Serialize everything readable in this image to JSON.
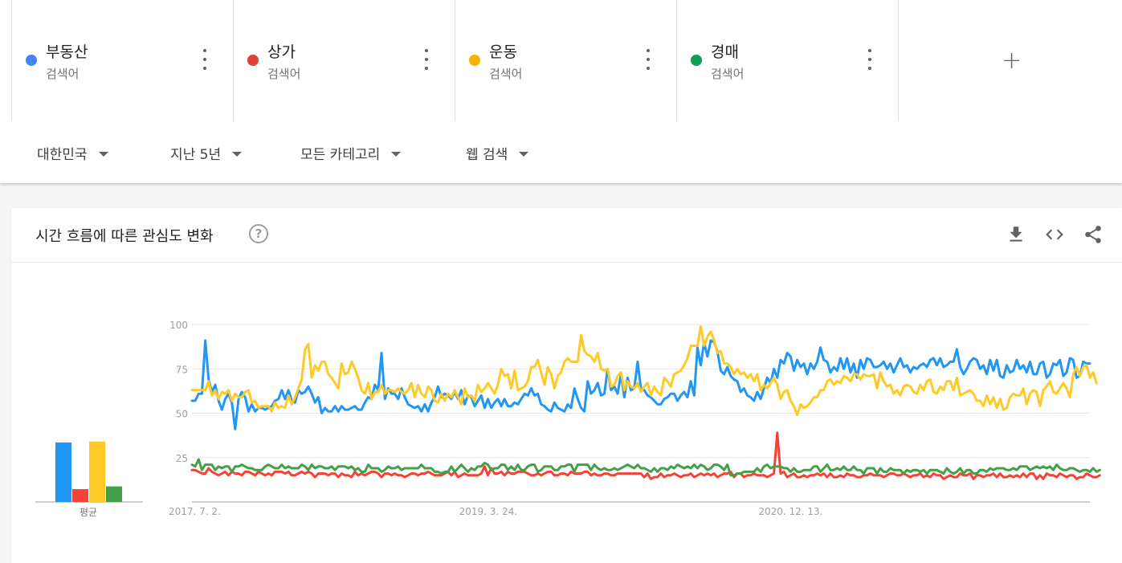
{
  "terms": [
    {
      "name": "부동산",
      "type": "검색어",
      "color": "#4285f4"
    },
    {
      "name": "상가",
      "type": "검색어",
      "color": "#db4437"
    },
    {
      "name": "운동",
      "type": "검색어",
      "color": "#f4b400"
    },
    {
      "name": "경매",
      "type": "검색어",
      "color": "#0f9d58"
    }
  ],
  "add_term_symbol": "+",
  "filters": {
    "region": "대한민국",
    "period": "지난 5년",
    "category": "모든 카테고리",
    "search_type": "웹 검색"
  },
  "card": {
    "title": "시간 흐름에 따른 관심도 변화",
    "help_symbol": "?"
  },
  "chart_data": [
    {
      "type": "bar",
      "xlabel": "평균",
      "categories": [
        "부동산",
        "상가",
        "운동",
        "경매"
      ],
      "values": [
        65,
        14,
        66,
        17
      ],
      "colors": [
        "#2196f3",
        "#f44336",
        "#ffca28",
        "#43a047"
      ]
    },
    {
      "type": "line",
      "ylim": [
        0,
        100
      ],
      "yticks": [
        25,
        50,
        75,
        100
      ],
      "xticks": [
        "2017. 7. 2.",
        "2019. 3. 24.",
        "2020. 12. 13."
      ],
      "x_start": "2017-07-02",
      "x_step": "1 week",
      "series": [
        {
          "name": "부동산",
          "color": "#2196f3",
          "values": [
            57,
            57,
            61,
            61,
            91,
            69,
            62,
            66,
            57,
            52,
            58,
            61,
            56,
            41,
            58,
            62,
            59,
            51,
            55,
            51,
            53,
            53,
            52,
            53,
            54,
            57,
            58,
            63,
            58,
            63,
            57,
            56,
            63,
            61,
            62,
            65,
            61,
            56,
            59,
            50,
            53,
            51,
            51,
            54,
            51,
            54,
            52,
            52,
            53,
            54,
            52,
            52,
            56,
            59,
            58,
            66,
            63,
            84,
            58,
            64,
            61,
            61,
            58,
            64,
            59,
            55,
            54,
            53,
            54,
            51,
            55,
            51,
            56,
            59,
            65,
            59,
            61,
            60,
            58,
            62,
            58,
            63,
            55,
            60,
            59,
            54,
            57,
            60,
            53,
            58,
            53,
            56,
            58,
            54,
            58,
            54,
            54,
            56,
            55,
            58,
            61,
            60,
            64,
            60,
            61,
            55,
            54,
            52,
            51,
            56,
            53,
            52,
            51,
            55,
            53,
            64,
            58,
            53,
            51,
            68,
            61,
            63,
            67,
            60,
            61,
            75,
            63,
            65,
            61,
            72,
            59,
            70,
            63,
            64,
            79,
            64,
            63,
            60,
            59,
            57,
            55,
            55,
            58,
            59,
            61,
            61,
            57,
            60,
            62,
            59,
            68,
            60,
            87,
            77,
            90,
            82,
            91,
            90,
            85,
            74,
            72,
            76,
            71,
            69,
            68,
            62,
            64,
            60,
            59,
            57,
            62,
            58,
            64,
            70,
            67,
            75,
            70,
            80,
            78,
            84,
            82,
            74,
            80,
            76,
            78,
            72,
            78,
            75,
            79,
            87,
            80,
            79,
            73,
            76,
            74,
            81,
            75,
            81,
            73,
            78,
            70,
            80,
            75,
            81,
            80,
            76,
            76,
            77,
            79,
            75,
            78,
            73,
            77,
            81,
            76,
            77,
            73,
            76,
            75,
            77,
            78,
            76,
            80,
            81,
            77,
            81,
            76,
            77,
            79,
            79,
            86,
            76,
            72,
            75,
            79,
            81,
            80,
            75,
            77,
            72,
            80,
            74,
            80,
            71,
            70,
            77,
            73,
            74,
            80,
            75,
            77,
            73,
            79,
            72,
            72,
            78,
            79,
            70,
            72,
            78,
            77,
            80,
            71,
            73,
            81,
            80,
            70,
            71,
            79,
            78,
            78
          ]
        },
        {
          "name": "상가",
          "color": "#f44336",
          "values": [
            18,
            18,
            17,
            16,
            16,
            19,
            17,
            16,
            15,
            16,
            17,
            15,
            17,
            16,
            16,
            15,
            17,
            17,
            16,
            15,
            17,
            16,
            15,
            16,
            15,
            17,
            17,
            17,
            16,
            17,
            15,
            15,
            16,
            17,
            16,
            17,
            16,
            14,
            16,
            16,
            16,
            15,
            16,
            16,
            14,
            16,
            15,
            15,
            14,
            17,
            15,
            16,
            15,
            16,
            17,
            17,
            16,
            14,
            16,
            16,
            15,
            16,
            15,
            15,
            14,
            15,
            16,
            16,
            15,
            16,
            16,
            17,
            16,
            15,
            15,
            15,
            16,
            17,
            15,
            17,
            14,
            15,
            16,
            15,
            15,
            15,
            15,
            16,
            20,
            15,
            19,
            16,
            16,
            17,
            15,
            17,
            16,
            16,
            17,
            17,
            17,
            16,
            15,
            15,
            16,
            15,
            16,
            17,
            17,
            15,
            15,
            16,
            16,
            15,
            17,
            16,
            16,
            16,
            17,
            17,
            15,
            16,
            15,
            15,
            16,
            16,
            15,
            15,
            16,
            16,
            16,
            16,
            16,
            16,
            16,
            16,
            14,
            16,
            13,
            14,
            14,
            16,
            14,
            15,
            15,
            16,
            15,
            14,
            15,
            15,
            16,
            14,
            15,
            16,
            15,
            16,
            15,
            16,
            14,
            15,
            16,
            16,
            17,
            14,
            16,
            16,
            14,
            15,
            15,
            16,
            15,
            15,
            15,
            14,
            15,
            16,
            39,
            16,
            17,
            14,
            15,
            16,
            14,
            14,
            15,
            14,
            15,
            15,
            16,
            15,
            16,
            14,
            16,
            14,
            14,
            15,
            14,
            16,
            15,
            15,
            14,
            14,
            15,
            15,
            16,
            15,
            15,
            15,
            14,
            15,
            16,
            16,
            15,
            15,
            16,
            15,
            14,
            15,
            15,
            16,
            14,
            15,
            14,
            16,
            15,
            15,
            13,
            14,
            15,
            14,
            14,
            16,
            15,
            15,
            16,
            13,
            15,
            15,
            14,
            15,
            15,
            16,
            14,
            16,
            14,
            14,
            15,
            14,
            15,
            14,
            16,
            14,
            16,
            16,
            13,
            15,
            13,
            16,
            15,
            15,
            14,
            16,
            15,
            14,
            15,
            15,
            13,
            14,
            14,
            16,
            15,
            14,
            14,
            15
          ]
        },
        {
          "name": "운동",
          "color": "#ffca28",
          "values": [
            63,
            63,
            63,
            63,
            63,
            68,
            60,
            63,
            58,
            62,
            61,
            63,
            57,
            61,
            59,
            59,
            62,
            63,
            56,
            57,
            53,
            54,
            54,
            54,
            51,
            56,
            53,
            54,
            53,
            60,
            55,
            59,
            64,
            69,
            86,
            89,
            70,
            77,
            74,
            79,
            79,
            72,
            70,
            67,
            64,
            78,
            72,
            73,
            79,
            75,
            70,
            63,
            61,
            67,
            58,
            62,
            62,
            66,
            61,
            63,
            63,
            62,
            64,
            62,
            61,
            63,
            67,
            59,
            66,
            61,
            59,
            65,
            63,
            57,
            56,
            61,
            57,
            61,
            59,
            63,
            59,
            55,
            64,
            59,
            60,
            57,
            66,
            62,
            64,
            67,
            64,
            61,
            66,
            75,
            71,
            72,
            64,
            74,
            63,
            64,
            65,
            68,
            76,
            76,
            80,
            73,
            66,
            76,
            72,
            64,
            71,
            73,
            79,
            81,
            79,
            79,
            79,
            94,
            85,
            83,
            82,
            79,
            84,
            75,
            74,
            75,
            65,
            66,
            71,
            73,
            63,
            68,
            65,
            64,
            67,
            62,
            65,
            67,
            60,
            65,
            62,
            60,
            70,
            68,
            65,
            72,
            73,
            74,
            77,
            81,
            88,
            88,
            88,
            99,
            88,
            93,
            96,
            91,
            84,
            85,
            78,
            78,
            76,
            72,
            75,
            72,
            73,
            70,
            72,
            68,
            72,
            63,
            66,
            64,
            67,
            70,
            66,
            58,
            62,
            63,
            57,
            54,
            49,
            55,
            53,
            54,
            56,
            59,
            59,
            63,
            63,
            68,
            69,
            66,
            68,
            67,
            71,
            70,
            68,
            72,
            72,
            69,
            72,
            71,
            71,
            72,
            64,
            73,
            68,
            65,
            66,
            61,
            63,
            60,
            65,
            66,
            65,
            62,
            61,
            66,
            63,
            68,
            69,
            62,
            61,
            65,
            63,
            68,
            68,
            63,
            70,
            60,
            61,
            62,
            63,
            61,
            57,
            57,
            54,
            60,
            55,
            59,
            53,
            58,
            52,
            53,
            59,
            61,
            60,
            60,
            64,
            55,
            61,
            63,
            62,
            54,
            63,
            65,
            68,
            62,
            61,
            64,
            67,
            64,
            59,
            72,
            76,
            71,
            76,
            77,
            70,
            73,
            67
          ]
        },
        {
          "name": "경매",
          "color": "#43a047",
          "values": [
            21,
            20,
            24,
            18,
            21,
            21,
            21,
            18,
            20,
            19,
            20,
            20,
            17,
            20,
            20,
            21,
            20,
            19,
            19,
            18,
            18,
            18,
            20,
            21,
            20,
            19,
            19,
            21,
            19,
            20,
            19,
            19,
            19,
            21,
            20,
            18,
            21,
            19,
            20,
            20,
            19,
            19,
            20,
            18,
            20,
            20,
            20,
            19,
            20,
            18,
            19,
            17,
            17,
            21,
            19,
            19,
            19,
            17,
            18,
            20,
            19,
            19,
            20,
            18,
            19,
            19,
            19,
            19,
            19,
            21,
            19,
            19,
            19,
            17,
            17,
            16,
            17,
            17,
            20,
            17,
            19,
            21,
            19,
            17,
            19,
            18,
            20,
            20,
            22,
            21,
            18,
            19,
            19,
            21,
            21,
            18,
            20,
            18,
            21,
            18,
            18,
            20,
            21,
            21,
            17,
            18,
            20,
            20,
            20,
            18,
            18,
            20,
            20,
            21,
            21,
            17,
            21,
            21,
            21,
            21,
            18,
            21,
            19,
            18,
            19,
            18,
            18,
            19,
            18,
            19,
            20,
            21,
            20,
            19,
            21,
            19,
            19,
            18,
            17,
            19,
            17,
            19,
            19,
            18,
            20,
            19,
            21,
            20,
            19,
            20,
            19,
            21,
            19,
            21,
            20,
            18,
            19,
            21,
            21,
            20,
            18,
            21,
            15,
            15,
            16,
            16,
            17,
            17,
            17,
            17,
            19,
            17,
            20,
            21,
            19,
            20,
            20,
            20,
            19,
            19,
            17,
            19,
            17,
            17,
            18,
            18,
            18,
            20,
            20,
            17,
            19,
            21,
            18,
            18,
            19,
            18,
            20,
            18,
            18,
            20,
            18,
            18,
            16,
            19,
            19,
            19,
            16,
            19,
            17,
            17,
            19,
            18,
            18,
            18,
            16,
            18,
            17,
            18,
            18,
            17,
            18,
            16,
            18,
            18,
            18,
            17,
            16,
            19,
            17,
            16,
            17,
            19,
            16,
            18,
            18,
            16,
            16,
            18,
            18,
            17,
            19,
            18,
            19,
            19,
            19,
            18,
            18,
            19,
            18,
            20,
            20,
            20,
            18,
            19,
            20,
            19,
            20,
            19,
            20,
            18,
            21,
            19,
            18,
            18,
            19,
            19,
            18,
            17,
            18,
            18,
            17,
            19,
            17,
            18
          ]
        }
      ]
    }
  ]
}
